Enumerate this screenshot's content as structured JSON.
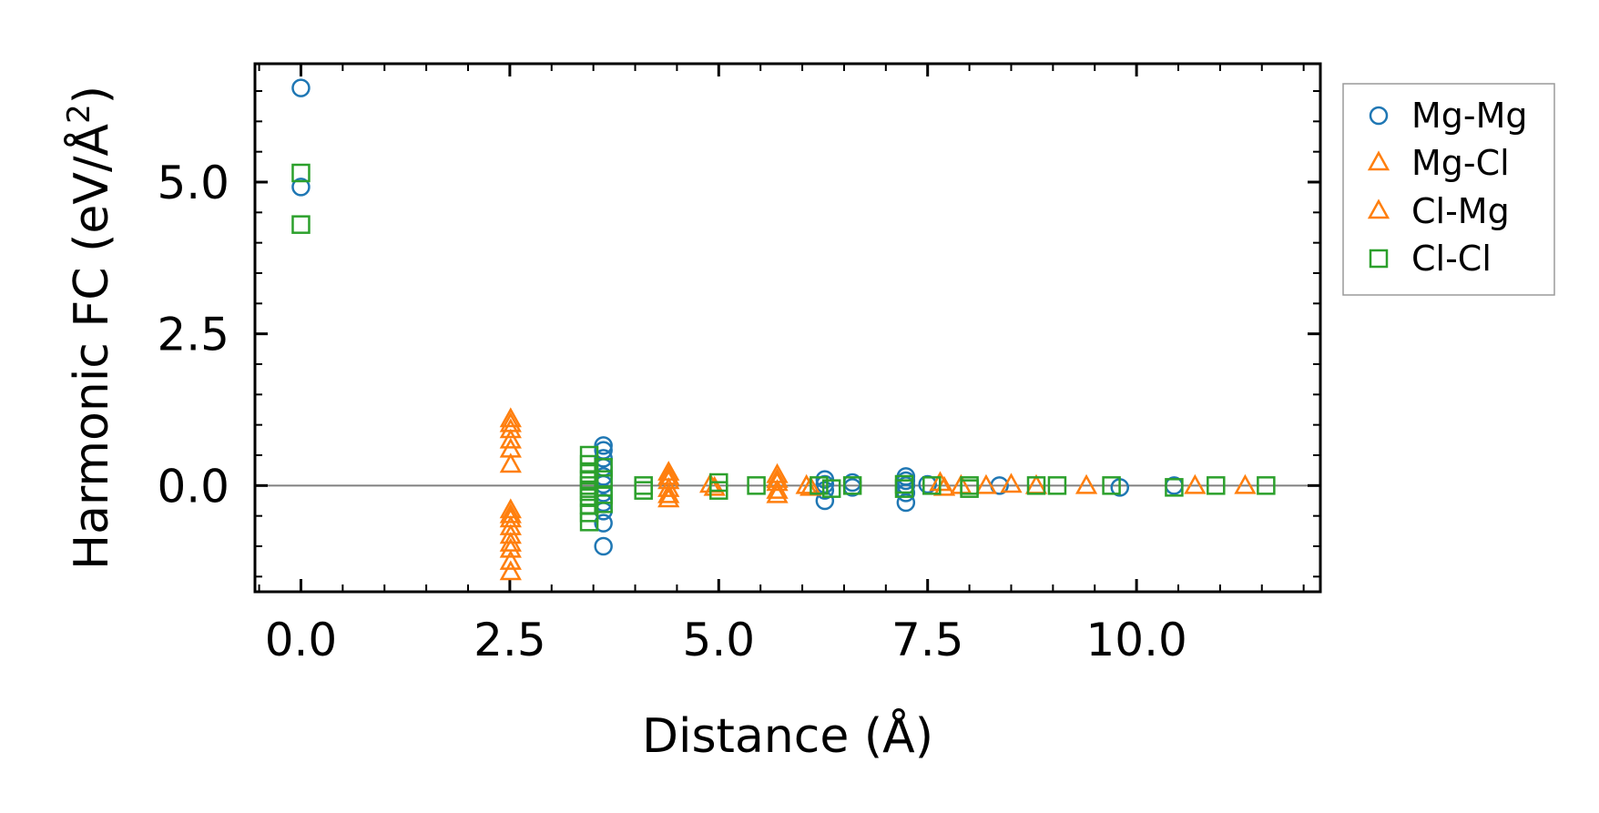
{
  "chart_data": {
    "type": "scatter",
    "title": "",
    "xlabel": "Distance (Å)",
    "ylabel_main": "Harmonic FC (eV/Å",
    "ylabel_sup": "2",
    "ylabel_end": ")",
    "xlim": [
      -0.55,
      12.2
    ],
    "ylim": [
      -1.75,
      6.95
    ],
    "xticks": [
      0.0,
      2.5,
      5.0,
      7.5,
      10.0
    ],
    "xtick_labels": [
      "0.0",
      "2.5",
      "5.0",
      "7.5",
      "10.0"
    ],
    "yticks": [
      0.0,
      2.5,
      5.0
    ],
    "ytick_labels": [
      "0.0",
      "2.5",
      "5.0"
    ],
    "zero_line": 0,
    "legend_position": "outside-right-top",
    "series": [
      {
        "name": "Mg-Mg",
        "marker": "circle",
        "color": "#1f77b4",
        "points": [
          [
            0.0,
            6.55
          ],
          [
            0.0,
            4.92
          ],
          [
            3.62,
            0.66
          ],
          [
            3.62,
            0.58
          ],
          [
            3.62,
            0.45
          ],
          [
            3.62,
            0.3
          ],
          [
            3.62,
            0.15
          ],
          [
            3.62,
            0.02
          ],
          [
            3.62,
            -0.12
          ],
          [
            3.62,
            -0.28
          ],
          [
            3.62,
            -0.42
          ],
          [
            3.62,
            -0.62
          ],
          [
            3.62,
            -1.0
          ],
          [
            6.27,
            0.1
          ],
          [
            6.27,
            0.02
          ],
          [
            6.27,
            -0.08
          ],
          [
            6.27,
            -0.25
          ],
          [
            6.6,
            0.05
          ],
          [
            6.6,
            -0.03
          ],
          [
            7.24,
            0.15
          ],
          [
            7.24,
            0.08
          ],
          [
            7.24,
            0.0
          ],
          [
            7.24,
            -0.12
          ],
          [
            7.24,
            -0.28
          ],
          [
            7.5,
            0.02
          ],
          [
            8.36,
            0.0
          ],
          [
            9.8,
            -0.03
          ],
          [
            10.45,
            0.0
          ]
        ]
      },
      {
        "name": "Mg-Cl",
        "marker": "triangle",
        "color": "#ff7f0e",
        "points": [
          [
            2.51,
            1.1
          ],
          [
            2.51,
            0.92
          ],
          [
            2.51,
            0.75
          ],
          [
            2.51,
            0.35
          ],
          [
            2.51,
            -0.4
          ],
          [
            2.51,
            -0.55
          ],
          [
            2.51,
            -0.68
          ],
          [
            2.51,
            -0.82
          ],
          [
            2.51,
            -1.05
          ],
          [
            2.51,
            -1.25
          ],
          [
            2.51,
            -1.42
          ],
          [
            4.4,
            0.22
          ],
          [
            4.4,
            0.08
          ],
          [
            4.4,
            -0.05
          ],
          [
            4.4,
            -0.15
          ],
          [
            4.9,
            0.02
          ],
          [
            5.7,
            0.18
          ],
          [
            5.7,
            0.05
          ],
          [
            5.7,
            -0.08
          ],
          [
            6.05,
            0.0
          ],
          [
            7.65,
            0.05
          ],
          [
            7.9,
            0.0
          ],
          [
            8.5,
            0.02
          ],
          [
            9.4,
            0.0
          ],
          [
            10.7,
            0.0
          ],
          [
            11.3,
            0.0
          ]
        ]
      },
      {
        "name": "Cl-Mg",
        "marker": "triangle",
        "color": "#ff7f0e",
        "points": [
          [
            2.51,
            1.02
          ],
          [
            2.51,
            0.6
          ],
          [
            2.51,
            -0.48
          ],
          [
            2.51,
            -0.95
          ],
          [
            4.4,
            0.15
          ],
          [
            4.4,
            -0.22
          ],
          [
            4.95,
            -0.03
          ],
          [
            5.7,
            0.1
          ],
          [
            5.7,
            -0.15
          ],
          [
            6.1,
            -0.03
          ],
          [
            7.7,
            -0.03
          ],
          [
            8.2,
            0.0
          ],
          [
            8.8,
            0.0
          ]
        ]
      },
      {
        "name": "Cl-Cl",
        "marker": "square",
        "color": "#2ca02c",
        "points": [
          [
            0.0,
            5.15
          ],
          [
            0.0,
            4.3
          ],
          [
            3.45,
            0.5
          ],
          [
            3.45,
            0.35
          ],
          [
            3.45,
            0.2
          ],
          [
            3.45,
            0.1
          ],
          [
            3.45,
            0.0
          ],
          [
            3.45,
            -0.1
          ],
          [
            3.45,
            -0.2
          ],
          [
            3.45,
            -0.32
          ],
          [
            3.45,
            -0.45
          ],
          [
            3.45,
            -0.6
          ],
          [
            3.62,
            0.3
          ],
          [
            3.62,
            0.1
          ],
          [
            3.62,
            -0.15
          ],
          [
            3.62,
            -0.3
          ],
          [
            4.1,
            0.0
          ],
          [
            4.1,
            -0.08
          ],
          [
            5.0,
            0.05
          ],
          [
            5.0,
            -0.08
          ],
          [
            5.45,
            0.0
          ],
          [
            6.2,
            0.0
          ],
          [
            6.35,
            -0.05
          ],
          [
            6.6,
            0.0
          ],
          [
            7.22,
            0.02
          ],
          [
            7.22,
            -0.05
          ],
          [
            7.55,
            0.0
          ],
          [
            8.0,
            0.0
          ],
          [
            8.0,
            -0.05
          ],
          [
            8.8,
            0.0
          ],
          [
            9.05,
            0.0
          ],
          [
            9.7,
            0.0
          ],
          [
            10.45,
            -0.03
          ],
          [
            10.95,
            0.0
          ],
          [
            11.55,
            0.0
          ]
        ]
      }
    ]
  }
}
